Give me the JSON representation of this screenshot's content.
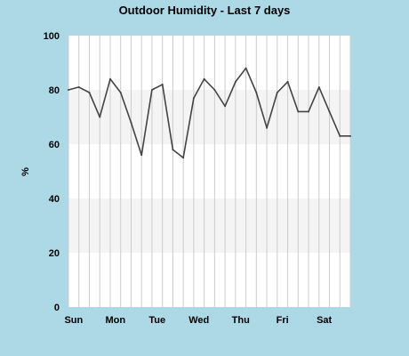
{
  "colors": {
    "background": "#add8e6",
    "plot_background": "#ffffff",
    "band": "#f4f4f4",
    "grid": "#cccccc",
    "line": "#444444"
  },
  "chart_data": {
    "type": "line",
    "title": "Outdoor Humidity - Last 7 days",
    "ylabel": "%",
    "xlabel": "",
    "ylim": [
      0,
      100
    ],
    "y_ticks": [
      "0",
      "20",
      "40",
      "60",
      "80",
      "100"
    ],
    "x_tick_labels": [
      "Sun",
      "Mon",
      "Tue",
      "Wed",
      "Thu",
      "Fri",
      "Sat"
    ],
    "x_tick_positions": [
      0.5,
      4.5,
      8.5,
      12.5,
      16.5,
      20.5,
      24.5
    ],
    "x_range": [
      0,
      27
    ],
    "grid": true,
    "series": [
      {
        "values": [
          80,
          81,
          79,
          70,
          84,
          79,
          68,
          56,
          80,
          82,
          58,
          55,
          77,
          84,
          80,
          74,
          83,
          88,
          79,
          66,
          79,
          83,
          72,
          72,
          81,
          72,
          63,
          63
        ]
      }
    ]
  }
}
